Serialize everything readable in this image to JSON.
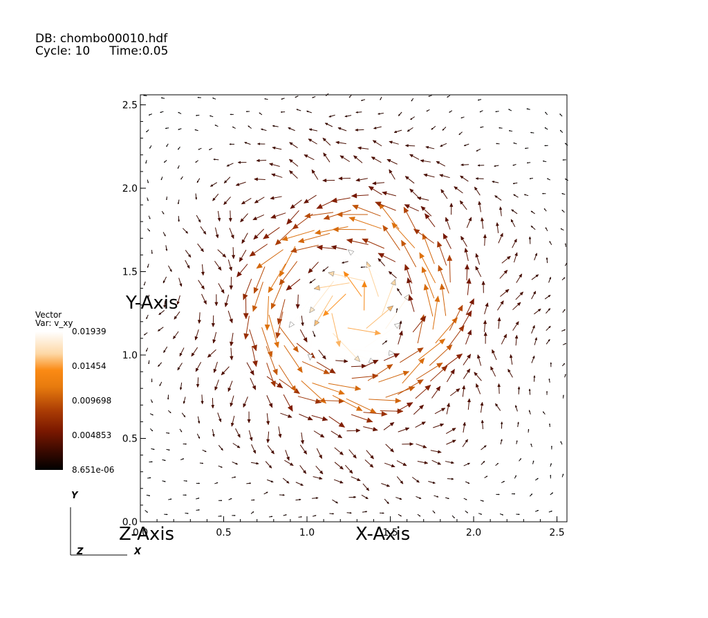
{
  "header": {
    "db": "DB: chombo00010.hdf",
    "cycle": "Cycle: 10",
    "time": "Time:0.05"
  },
  "legend": {
    "title": "Vector",
    "var": "Var: v_xy",
    "labels": [
      "0.01939",
      "0.01454",
      "0.009698",
      "0.004853",
      "8.651e-06"
    ],
    "min": 8.651e-06,
    "max": 0.01939,
    "colors": [
      "#000000",
      "#3c0a00",
      "#7a1800",
      "#a83a04",
      "#e77b0e",
      "#fb8a14",
      "#fdd8a6",
      "#ffffff"
    ]
  },
  "axes_triad": {
    "y": "Y",
    "z": "Z",
    "x": "X"
  },
  "chart_data": {
    "type": "vector-field",
    "variable": "v_xy",
    "xlabel": "X-Axis",
    "ylabel": "Y-Axis",
    "zlabel": "Z-Axis",
    "xlim": [
      0.0,
      2.56
    ],
    "ylim": [
      0.0,
      2.56
    ],
    "xticks": [
      "0.0",
      "0.5",
      "1.0",
      "1.5",
      "2.0",
      "2.5"
    ],
    "yticks": [
      "0.0",
      "0.5",
      "1.0",
      "1.5",
      "2.0",
      "2.5"
    ],
    "vortex_center": [
      1.28,
      1.28
    ],
    "vortex_core_radius": 0.25,
    "vortex_ring_radius": 0.5,
    "max_speed": 0.01939,
    "grid_spacing": 0.1
  }
}
